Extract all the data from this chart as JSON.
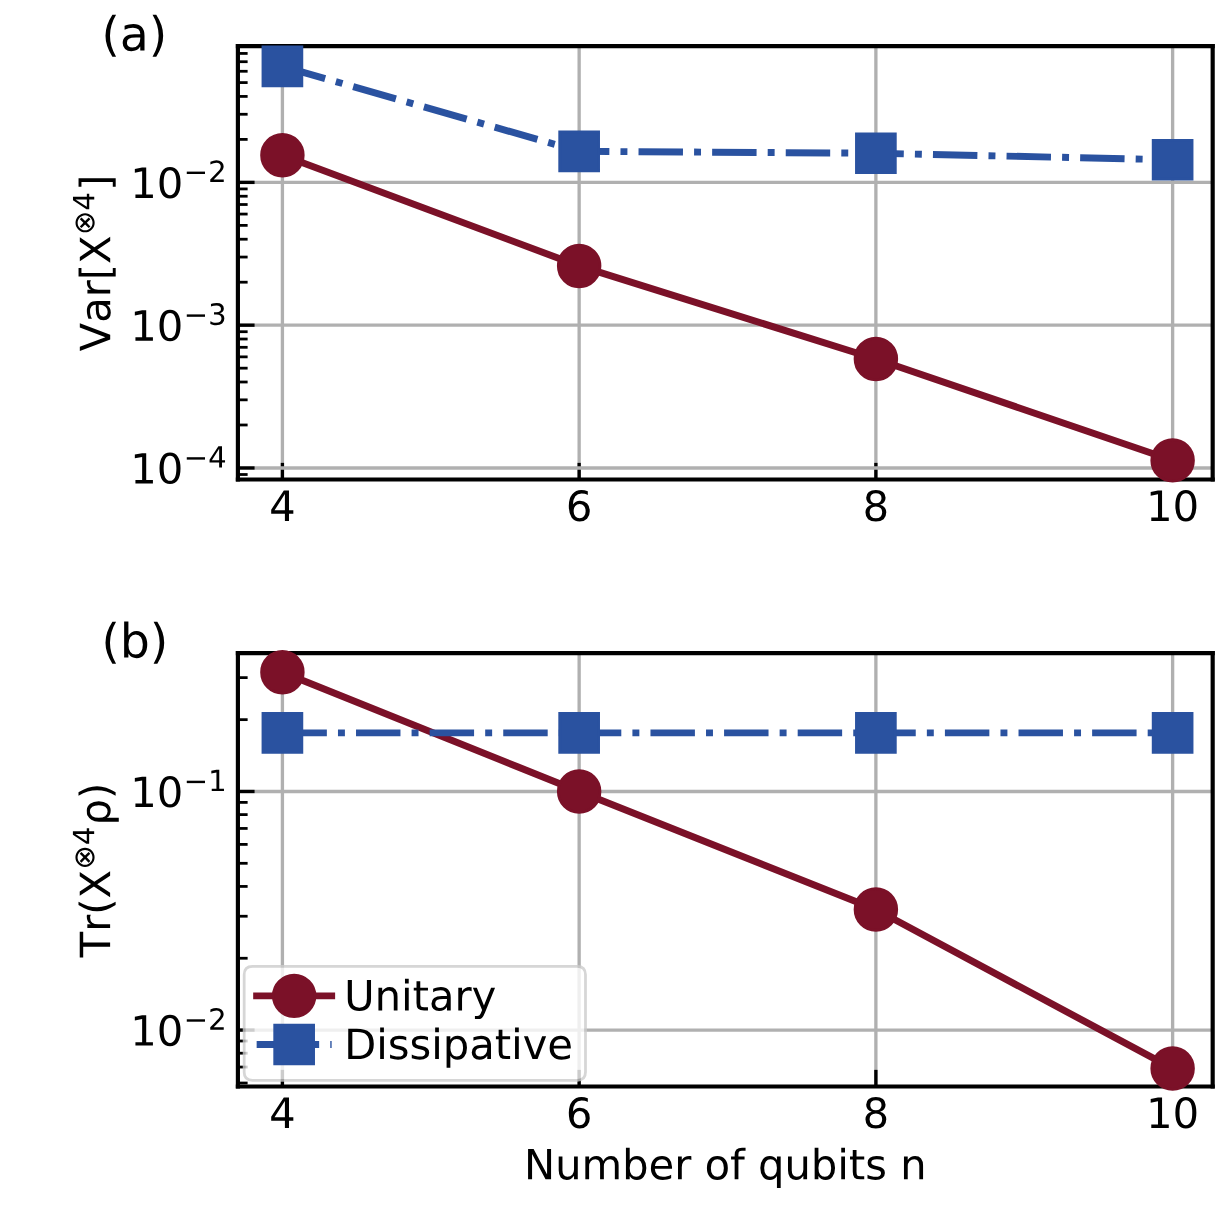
{
  "chart_data": [
    {
      "type": "line",
      "title": "(a)",
      "ylabel": "Var[X$^{⊗4}$]",
      "x": [
        4,
        6,
        8,
        10
      ],
      "log": "y",
      "grid": true,
      "legend": false,
      "xlim": [
        3.7,
        10.27
      ],
      "xticks": [
        4,
        6,
        8,
        10
      ],
      "ylim": [
        8.3e-05,
        0.09
      ],
      "yticks": [
        {
          "value": 0.0001,
          "label": "10$^{−4}$"
        },
        {
          "value": 0.001,
          "label": "10$^{−3}$"
        },
        {
          "value": 0.01,
          "label": "10$^{−2}$"
        }
      ],
      "series": [
        {
          "color": "#7b1128",
          "values": [
            0.0155,
            0.0026,
            0.00058,
            0.000113
          ],
          "marker": "circle",
          "line_style": "solid"
        },
        {
          "color": "#2a52a0",
          "values": [
            0.065,
            0.0165,
            0.016,
            0.0144
          ],
          "marker": "square",
          "line_style": "dashdot"
        }
      ]
    },
    {
      "type": "line",
      "title": "(b)",
      "ylabel": "Tr(X$^{⊗4}$ρ)",
      "xlabel": "Number of qubits n",
      "x": [
        4,
        6,
        8,
        10
      ],
      "log": "y",
      "grid": true,
      "legend": "bottom left",
      "xlim": [
        3.7,
        10.27
      ],
      "xticks": [
        4,
        6,
        8,
        10
      ],
      "ylim": [
        0.0058,
        0.38
      ],
      "yticks": [
        {
          "value": 0.01,
          "label": "10$^{−2}$"
        },
        {
          "value": 0.1,
          "label": "10$^{−1}$"
        }
      ],
      "series": [
        {
          "name": "Unitary",
          "color": "#7b1128",
          "values": [
            0.316,
            0.1,
            0.032,
            0.0069
          ],
          "marker": "circle",
          "line_style": "solid"
        },
        {
          "name": "Dissipative",
          "color": "#2a52a0",
          "values": [
            0.176,
            0.176,
            0.176,
            0.176
          ],
          "marker": "square",
          "line_style": "dashdot"
        }
      ]
    }
  ]
}
